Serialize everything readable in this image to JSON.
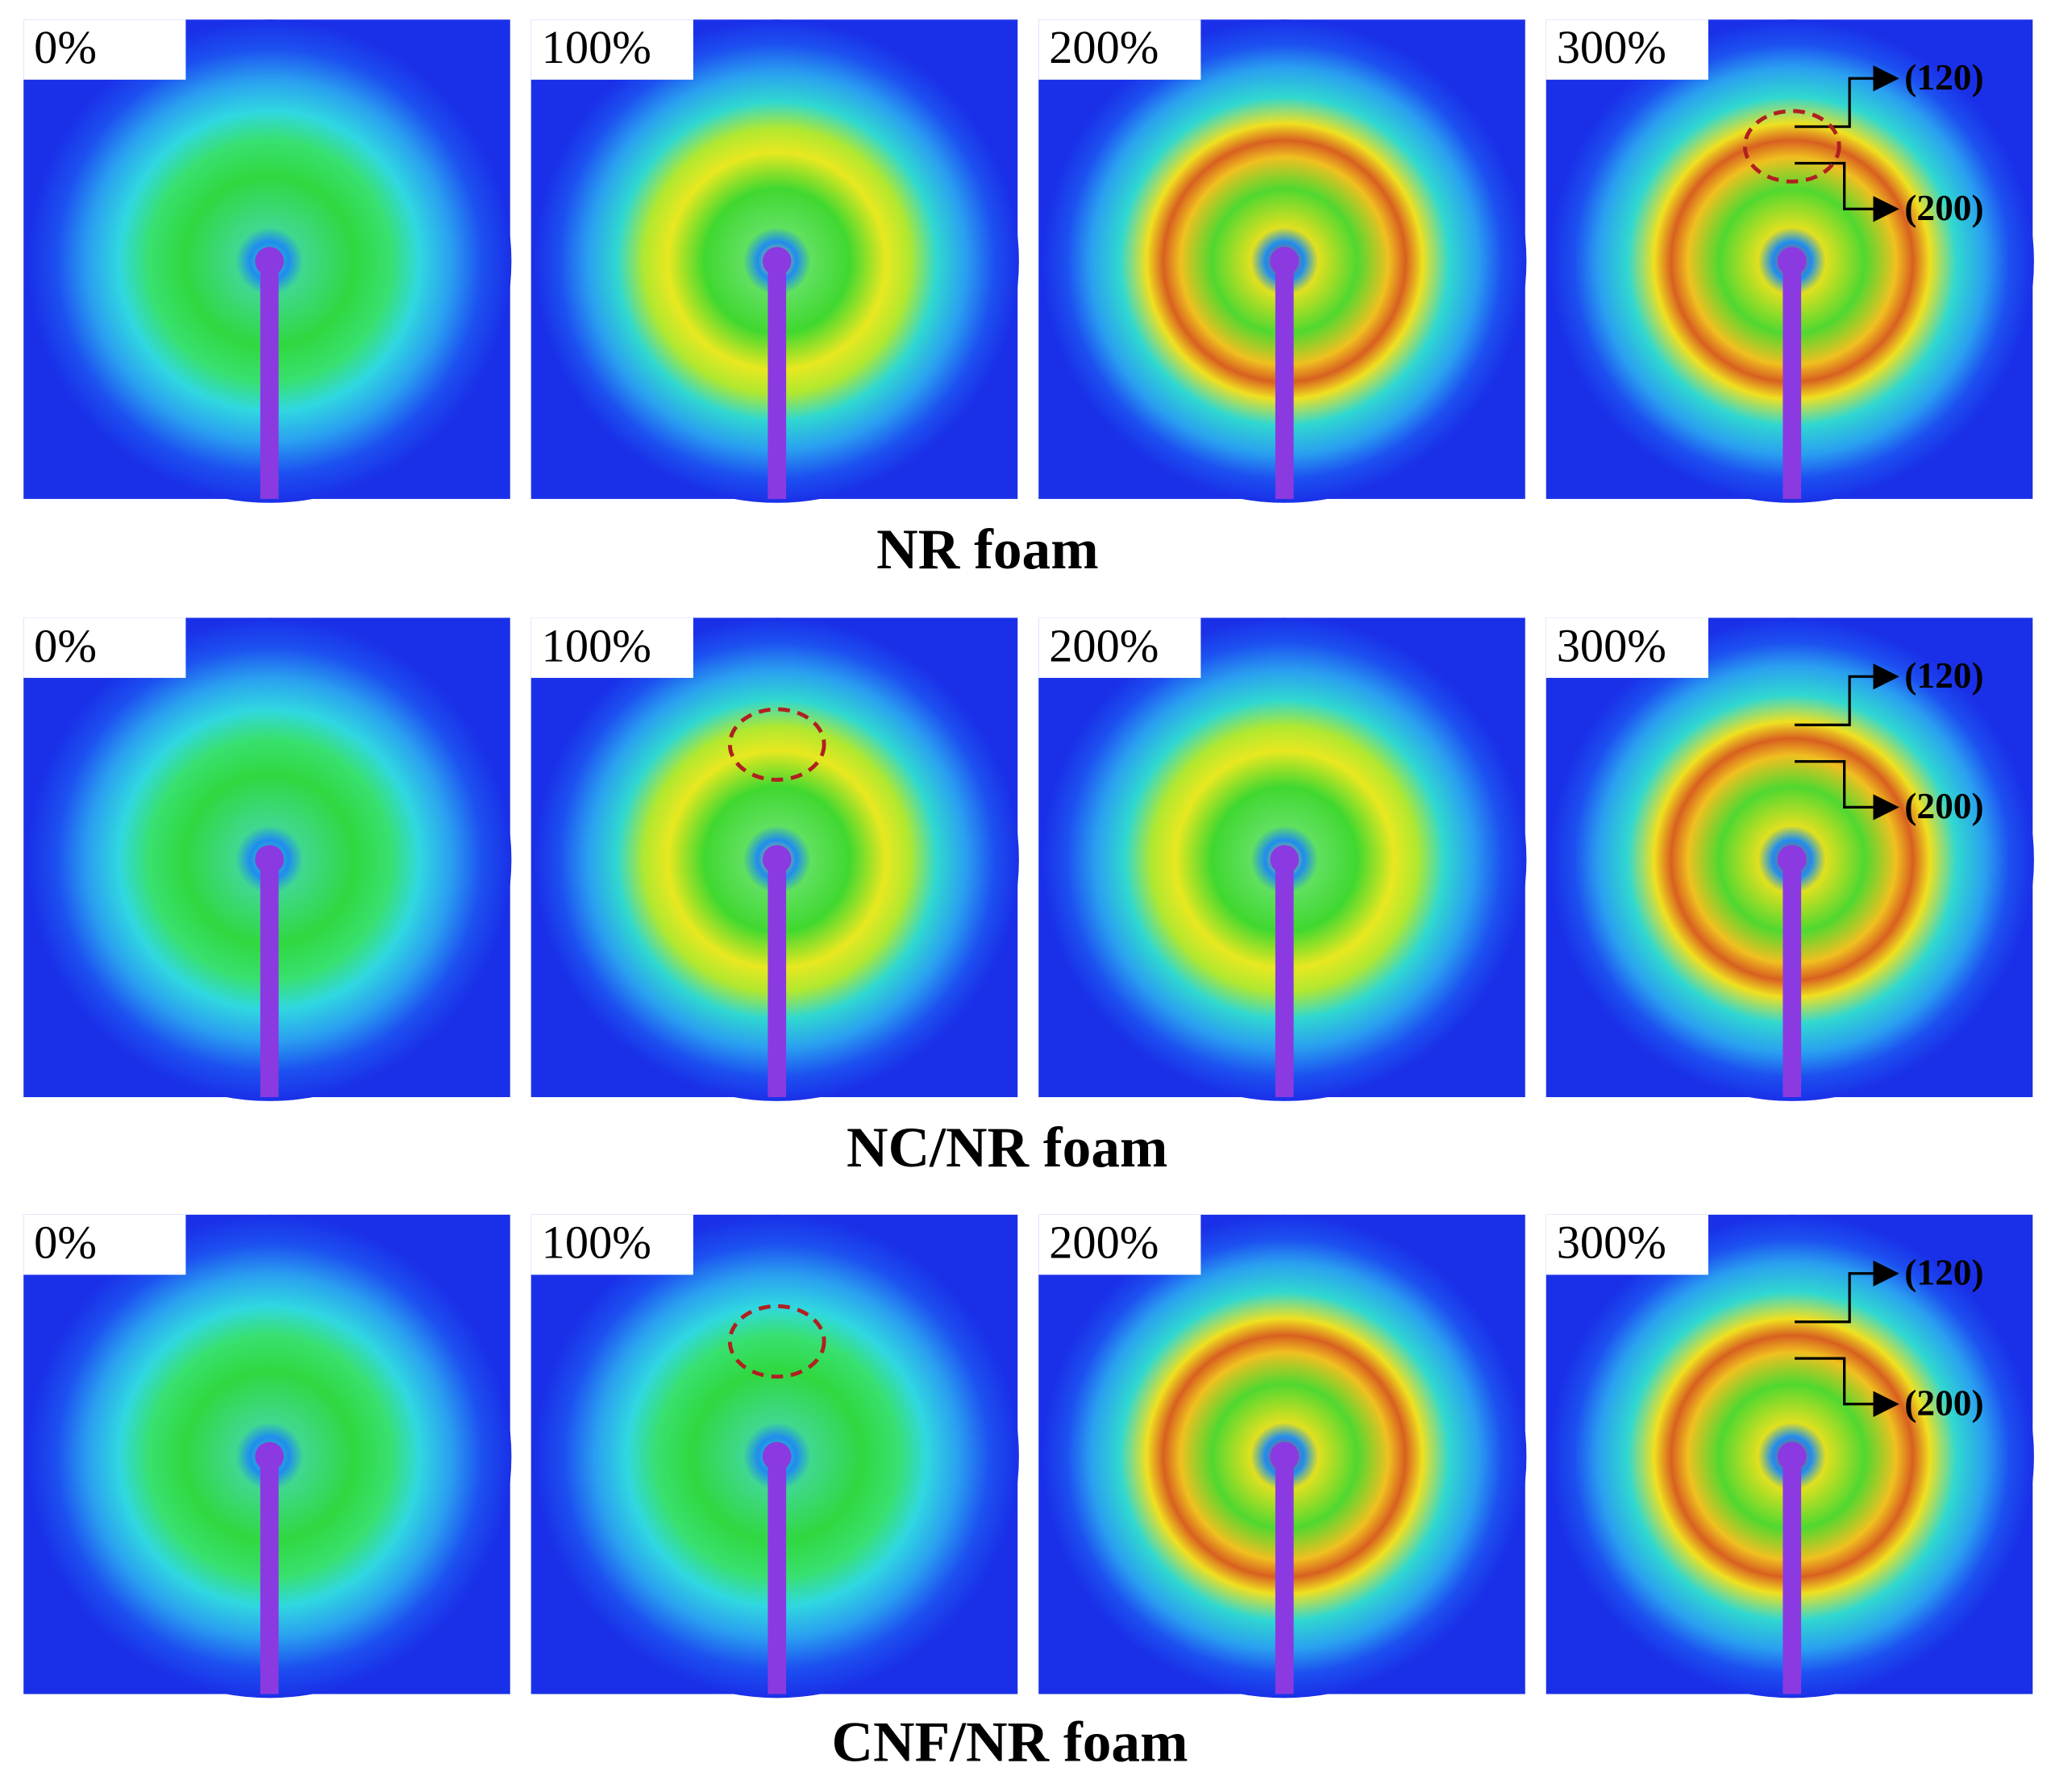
{
  "rows": [
    {
      "caption": "NR foam",
      "panels": [
        {
          "label": "0%"
        },
        {
          "label": "100%"
        },
        {
          "label": "200%"
        },
        {
          "label": "300%"
        }
      ],
      "annotations": [
        "(120)",
        "(200)"
      ]
    },
    {
      "caption": "NC/NR foam",
      "panels": [
        {
          "label": "0%"
        },
        {
          "label": "100%"
        },
        {
          "label": "200%"
        },
        {
          "label": "300%"
        }
      ],
      "annotations": [
        "(120)",
        "(200)"
      ]
    },
    {
      "caption": "CNF/NR foam",
      "panels": [
        {
          "label": "0%"
        },
        {
          "label": "100%"
        },
        {
          "label": "200%"
        },
        {
          "label": "300%"
        }
      ],
      "annotations": [
        "(120)",
        "(200)"
      ]
    }
  ]
}
